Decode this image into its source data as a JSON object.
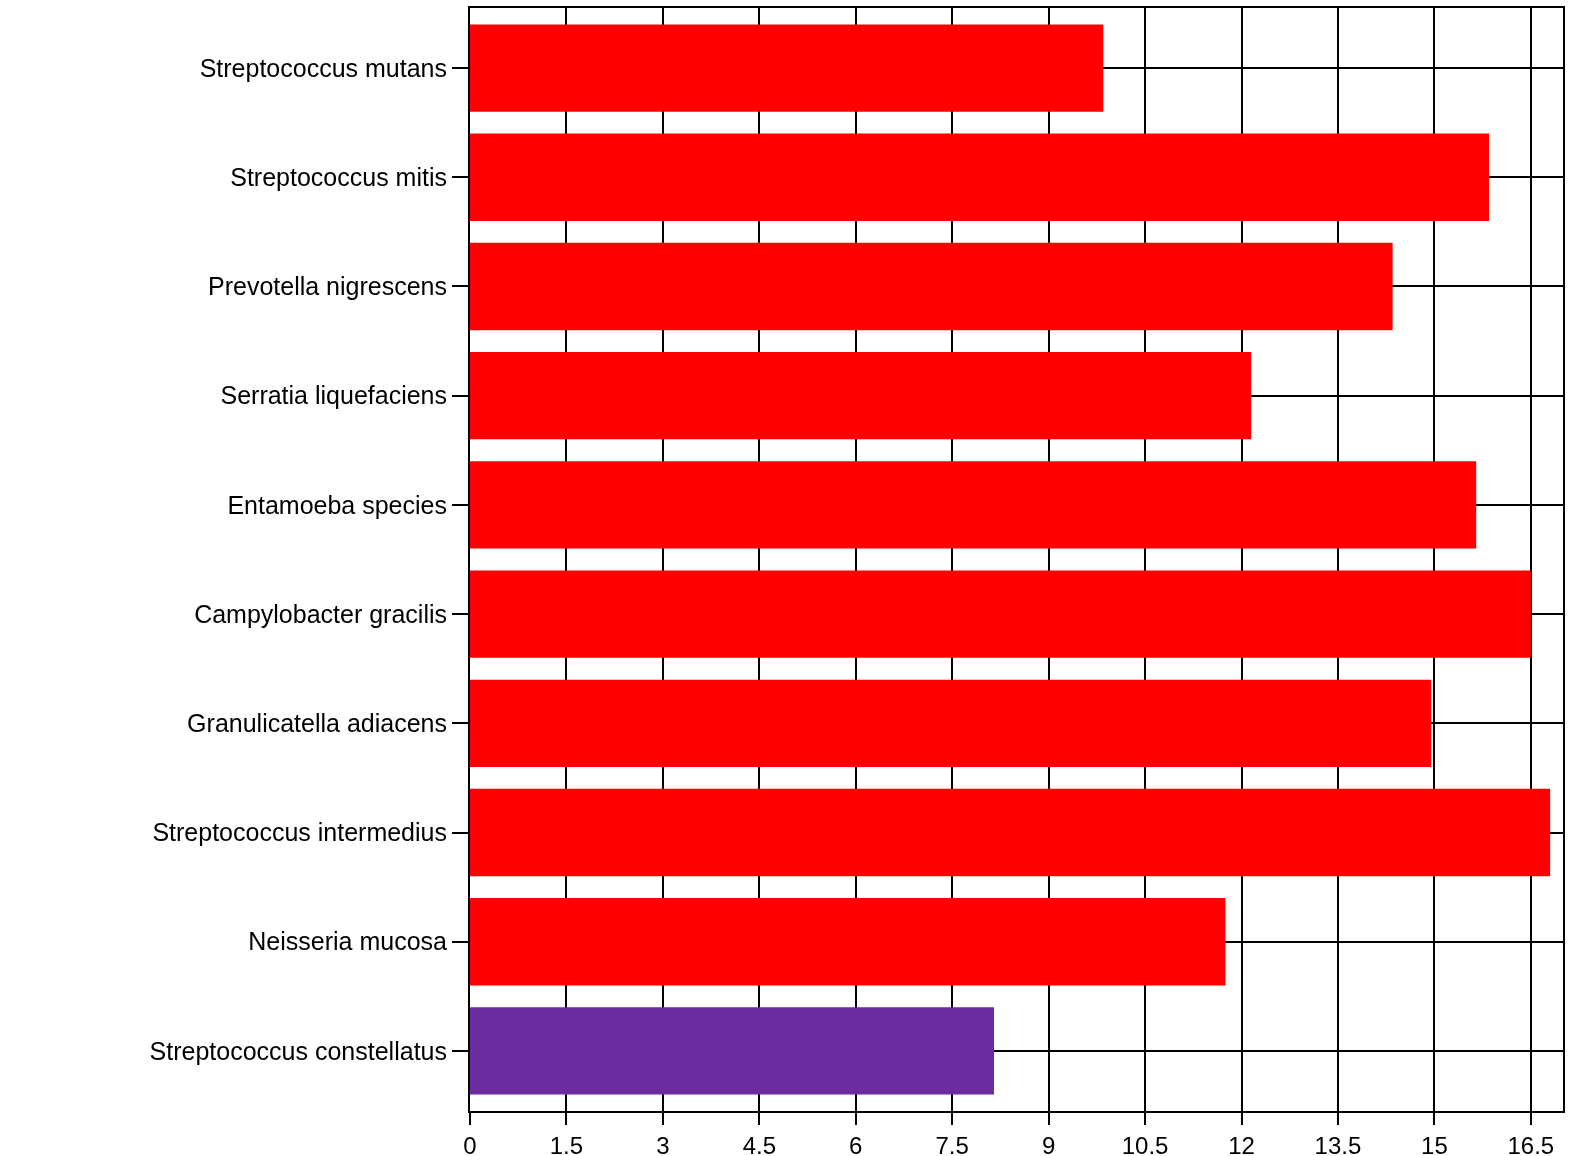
{
  "chart_data": {
    "type": "bar",
    "orientation": "horizontal",
    "categories": [
      "Streptococcus mutans",
      "Streptococcus mitis",
      "Prevotella nigrescens",
      "Serratia liquefaciens",
      "Entamoeba species",
      "Campylobacter gracilis",
      "Granulicatella adiacens",
      "Streptococcus intermedius",
      "Neisseria mucosa",
      "Streptococcus constellatus"
    ],
    "values": [
      9.85,
      15.85,
      14.35,
      12.15,
      15.65,
      16.5,
      14.95,
      16.8,
      11.75,
      8.15
    ],
    "colors": [
      "#ff0000",
      "#ff0000",
      "#ff0000",
      "#ff0000",
      "#ff0000",
      "#ff0000",
      "#ff0000",
      "#ff0000",
      "#ff0000",
      "#6a2c9e"
    ],
    "xlim": [
      0,
      17
    ],
    "xticks": [
      0,
      1.5,
      3,
      4.5,
      6,
      7.5,
      9,
      10.5,
      12,
      13.5,
      15,
      16.5
    ],
    "grid": true,
    "legend": false
  }
}
